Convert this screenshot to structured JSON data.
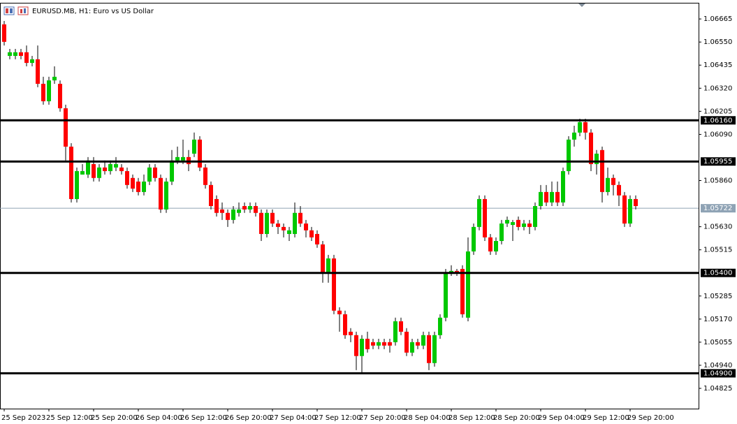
{
  "chart_data": {
    "type": "candlestick",
    "title": "EURUSD.MB, H1:  Euro vs US Dollar",
    "categories": [
      "25 Sep 2023",
      null,
      null,
      null,
      null,
      null,
      null,
      null,
      "25 Sep 12:00",
      null,
      null,
      null,
      null,
      null,
      null,
      null,
      "25 Sep 20:00",
      null,
      null,
      null,
      null,
      null,
      null,
      null,
      "26 Sep 04:00",
      null,
      null,
      null,
      null,
      null,
      null,
      null,
      "26 Sep 12:00",
      null,
      null,
      null,
      null,
      null,
      null,
      null,
      "26 Sep 20:00",
      null,
      null,
      null,
      null,
      null,
      null,
      null,
      "27 Sep 04:00",
      null,
      null,
      null,
      null,
      null,
      null,
      null,
      "27 Sep 12:00",
      null,
      null,
      null,
      null,
      null,
      null,
      null,
      "27 Sep 20:00",
      null,
      null,
      null,
      null,
      null,
      null,
      null,
      "28 Sep 04:00",
      null,
      null,
      null,
      null,
      null,
      null,
      null,
      "28 Sep 12:00",
      null,
      null,
      null,
      null,
      null,
      null,
      null,
      "28 Sep 20:00",
      null,
      null,
      null,
      null,
      null,
      null,
      null,
      "29 Sep 04:00",
      null,
      null,
      null,
      null,
      null,
      null,
      null,
      "29 Sep 12:00",
      null,
      null,
      null,
      null,
      null,
      null,
      null,
      "29 Sep 20:00",
      null
    ],
    "open": [
      1.06638,
      1.06481,
      1.06481,
      1.06499,
      1.06499,
      1.06446,
      1.06464,
      1.06342,
      1.06255,
      1.06359,
      1.06342,
      1.0622,
      1.06029,
      1.05768,
      1.0589,
      1.0589,
      1.05942,
      1.05873,
      1.05925,
      1.05907,
      1.05925,
      1.05925,
      1.05907,
      1.05873,
      1.05855,
      1.05803,
      1.05855,
      1.05925,
      1.05873,
      1.05716,
      1.05855,
      1.0596,
      1.0596,
      1.05977,
      1.05994,
      1.06064,
      1.05925,
      1.05838,
      1.05768,
      1.05716,
      1.05699,
      1.05664,
      1.05699,
      1.05733,
      1.05716,
      1.05733,
      1.05699,
      1.05594,
      1.05699,
      1.05646,
      1.05629,
      1.05594,
      1.05594,
      1.05699,
      1.05646,
      1.05612,
      1.05594,
      1.05542,
      1.05403,
      1.05472,
      1.05212,
      1.05194,
      1.05107,
      1.0509,
      1.04986,
      1.05072,
      1.05055,
      1.05038,
      1.05055,
      1.05055,
      1.05055,
      1.05159,
      1.05107,
      1.05003,
      1.05055,
      1.05038,
      1.0509,
      1.04951,
      1.0509,
      1.05177,
      1.05396,
      1.0541,
      1.0542,
      1.05177,
      1.05507,
      1.05629,
      1.05768,
      1.05577,
      1.05507,
      1.05559,
      1.05646,
      1.05639,
      1.05664,
      1.05629,
      1.05646,
      1.05629,
      1.05733,
      1.05803,
      1.05751,
      1.05803,
      1.05751,
      1.05907,
      1.06064,
      1.06099,
      1.06151,
      1.06099,
      1.05942,
      1.06012,
      1.05803,
      1.05873,
      1.05838,
      1.05786,
      1.05646,
      1.05768
    ],
    "high": [
      1.06655,
      1.06516,
      1.06516,
      1.06516,
      1.06533,
      1.06481,
      1.06533,
      1.06377,
      1.06377,
      1.06429,
      1.06359,
      1.06238,
      1.06046,
      1.05925,
      1.05942,
      1.05977,
      1.05977,
      1.05942,
      1.0596,
      1.0596,
      1.05977,
      1.05942,
      1.05925,
      1.0589,
      1.05873,
      1.0589,
      1.05942,
      1.05942,
      1.0589,
      1.05873,
      1.06012,
      1.06029,
      1.06064,
      1.06012,
      1.06099,
      1.06081,
      1.05942,
      1.05855,
      1.05786,
      1.05751,
      1.05716,
      1.05733,
      1.05751,
      1.05751,
      1.05751,
      1.05751,
      1.05716,
      1.05716,
      1.05716,
      1.05664,
      1.05646,
      1.05629,
      1.05751,
      1.05733,
      1.05664,
      1.05629,
      1.05612,
      1.05559,
      1.0549,
      1.0549,
      1.05229,
      1.05212,
      1.05125,
      1.05107,
      1.0509,
      1.05107,
      1.05072,
      1.05072,
      1.05072,
      1.05072,
      1.05177,
      1.05177,
      1.05125,
      1.05072,
      1.05072,
      1.05107,
      1.05107,
      1.05107,
      1.05194,
      1.0542,
      1.05438,
      1.0542,
      1.05438,
      1.05577,
      1.05646,
      1.05786,
      1.05786,
      1.05594,
      1.05577,
      1.05664,
      1.05681,
      1.05664,
      1.05681,
      1.05664,
      1.05664,
      1.05751,
      1.05838,
      1.05838,
      1.05855,
      1.05855,
      1.05925,
      1.06081,
      1.06133,
      1.06168,
      1.06168,
      1.06116,
      1.06012,
      1.06029,
      1.05925,
      1.0589,
      1.05855,
      1.05803,
      1.05786,
      1.05786
    ],
    "low": [
      1.06533,
      1.06464,
      1.06464,
      1.06464,
      1.06429,
      1.06429,
      1.06325,
      1.06238,
      1.06238,
      1.06342,
      1.06203,
      1.0596,
      1.05751,
      1.05751,
      1.0589,
      1.05873,
      1.05855,
      1.05855,
      1.0589,
      1.0589,
      1.05907,
      1.0589,
      1.0582,
      1.05803,
      1.05786,
      1.05786,
      1.05838,
      1.05855,
      1.05699,
      1.05699,
      1.05838,
      1.05942,
      1.05942,
      1.05907,
      1.05977,
      1.05907,
      1.0582,
      1.05716,
      1.05681,
      1.05664,
      1.05629,
      1.05646,
      1.05681,
      1.05699,
      1.05699,
      1.05681,
      1.05559,
      1.05577,
      1.05629,
      1.05594,
      1.05577,
      1.05559,
      1.05577,
      1.05629,
      1.05577,
      1.05559,
      1.05525,
      1.05351,
      1.05351,
      1.05194,
      1.05107,
      1.05072,
      1.05055,
      1.04916,
      1.04899,
      1.05003,
      1.0502,
      1.0502,
      1.0502,
      1.05003,
      1.05038,
      1.0509,
      1.04986,
      1.04986,
      1.0502,
      1.0502,
      1.04916,
      1.04933,
      1.05072,
      1.05159,
      1.05385,
      1.05385,
      1.05177,
      1.05159,
      1.0549,
      1.05612,
      1.05559,
      1.0549,
      1.0549,
      1.05542,
      1.05629,
      1.05559,
      1.05612,
      1.05612,
      1.05594,
      1.05612,
      1.05716,
      1.05733,
      1.05733,
      1.05733,
      1.05733,
      1.0589,
      1.06029,
      1.06081,
      1.06064,
      1.05907,
      1.0589,
      1.05751,
      1.05786,
      1.05786,
      1.05733,
      1.05629,
      1.05629,
      1.05716
    ],
    "close": [
      1.06551,
      1.06499,
      1.06499,
      1.06481,
      1.06446,
      1.06464,
      1.06342,
      1.06255,
      1.06359,
      1.06377,
      1.0622,
      1.06029,
      1.05768,
      1.05907,
      1.05907,
      1.0596,
      1.05873,
      1.05925,
      1.05907,
      1.05942,
      1.05942,
      1.05907,
      1.05838,
      1.0582,
      1.05803,
      1.05855,
      1.05925,
      1.05873,
      1.05716,
      1.05855,
      1.0596,
      1.05977,
      1.05977,
      1.05942,
      1.06064,
      1.05925,
      1.05838,
      1.05733,
      1.05699,
      1.05699,
      1.05664,
      1.05716,
      1.05716,
      1.05716,
      1.05733,
      1.05699,
      1.05594,
      1.05699,
      1.05646,
      1.05629,
      1.05612,
      1.05612,
      1.05699,
      1.05646,
      1.05612,
      1.05577,
      1.05542,
      1.05403,
      1.05472,
      1.05212,
      1.05194,
      1.0509,
      1.0509,
      1.04986,
      1.05072,
      1.0502,
      1.05038,
      1.05055,
      1.05038,
      1.05038,
      1.05159,
      1.05107,
      1.05003,
      1.05055,
      1.05038,
      1.0509,
      1.04951,
      1.0509,
      1.05177,
      1.05403,
      1.0541,
      1.05403,
      1.05194,
      1.05507,
      1.05629,
      1.05768,
      1.05577,
      1.05507,
      1.05559,
      1.05646,
      1.05664,
      1.05653,
      1.05629,
      1.05646,
      1.05629,
      1.05733,
      1.05803,
      1.05751,
      1.05803,
      1.05751,
      1.05907,
      1.06064,
      1.06099,
      1.06151,
      1.06099,
      1.05942,
      1.05994,
      1.05803,
      1.05873,
      1.05838,
      1.05786,
      1.05646,
      1.05768,
      1.05733
    ],
    "up_color": "#00c800",
    "down_color": "#ff0000",
    "ylim": [
      1.04724,
      1.06742
    ],
    "yticks": [
      1.04825,
      {
        "value": 1.0494,
        "label": "1.04940"
      },
      1.05055,
      {
        "value": 1.0517,
        "label": "1.05170"
      },
      1.05285,
      1.05515,
      {
        "value": 1.0563,
        "label": "1.05630"
      },
      {
        "value": 1.0586,
        "label": "1.05860"
      },
      {
        "value": 1.0609,
        "label": "1.06090"
      },
      1.06205,
      {
        "value": 1.0632,
        "label": "1.06320"
      },
      1.06435,
      {
        "value": 1.0655,
        "label": "1.06550"
      },
      1.06665
    ],
    "levels": [
      {
        "value": 1.0616,
        "label": "1.06160"
      },
      {
        "value": 1.05955,
        "label": "1.05955"
      },
      {
        "value": 1.054,
        "label": "1.05400"
      },
      {
        "value": 1.049,
        "label": "1.04900"
      }
    ],
    "price_line": {
      "value": 1.05722,
      "label": "1.05722"
    }
  }
}
